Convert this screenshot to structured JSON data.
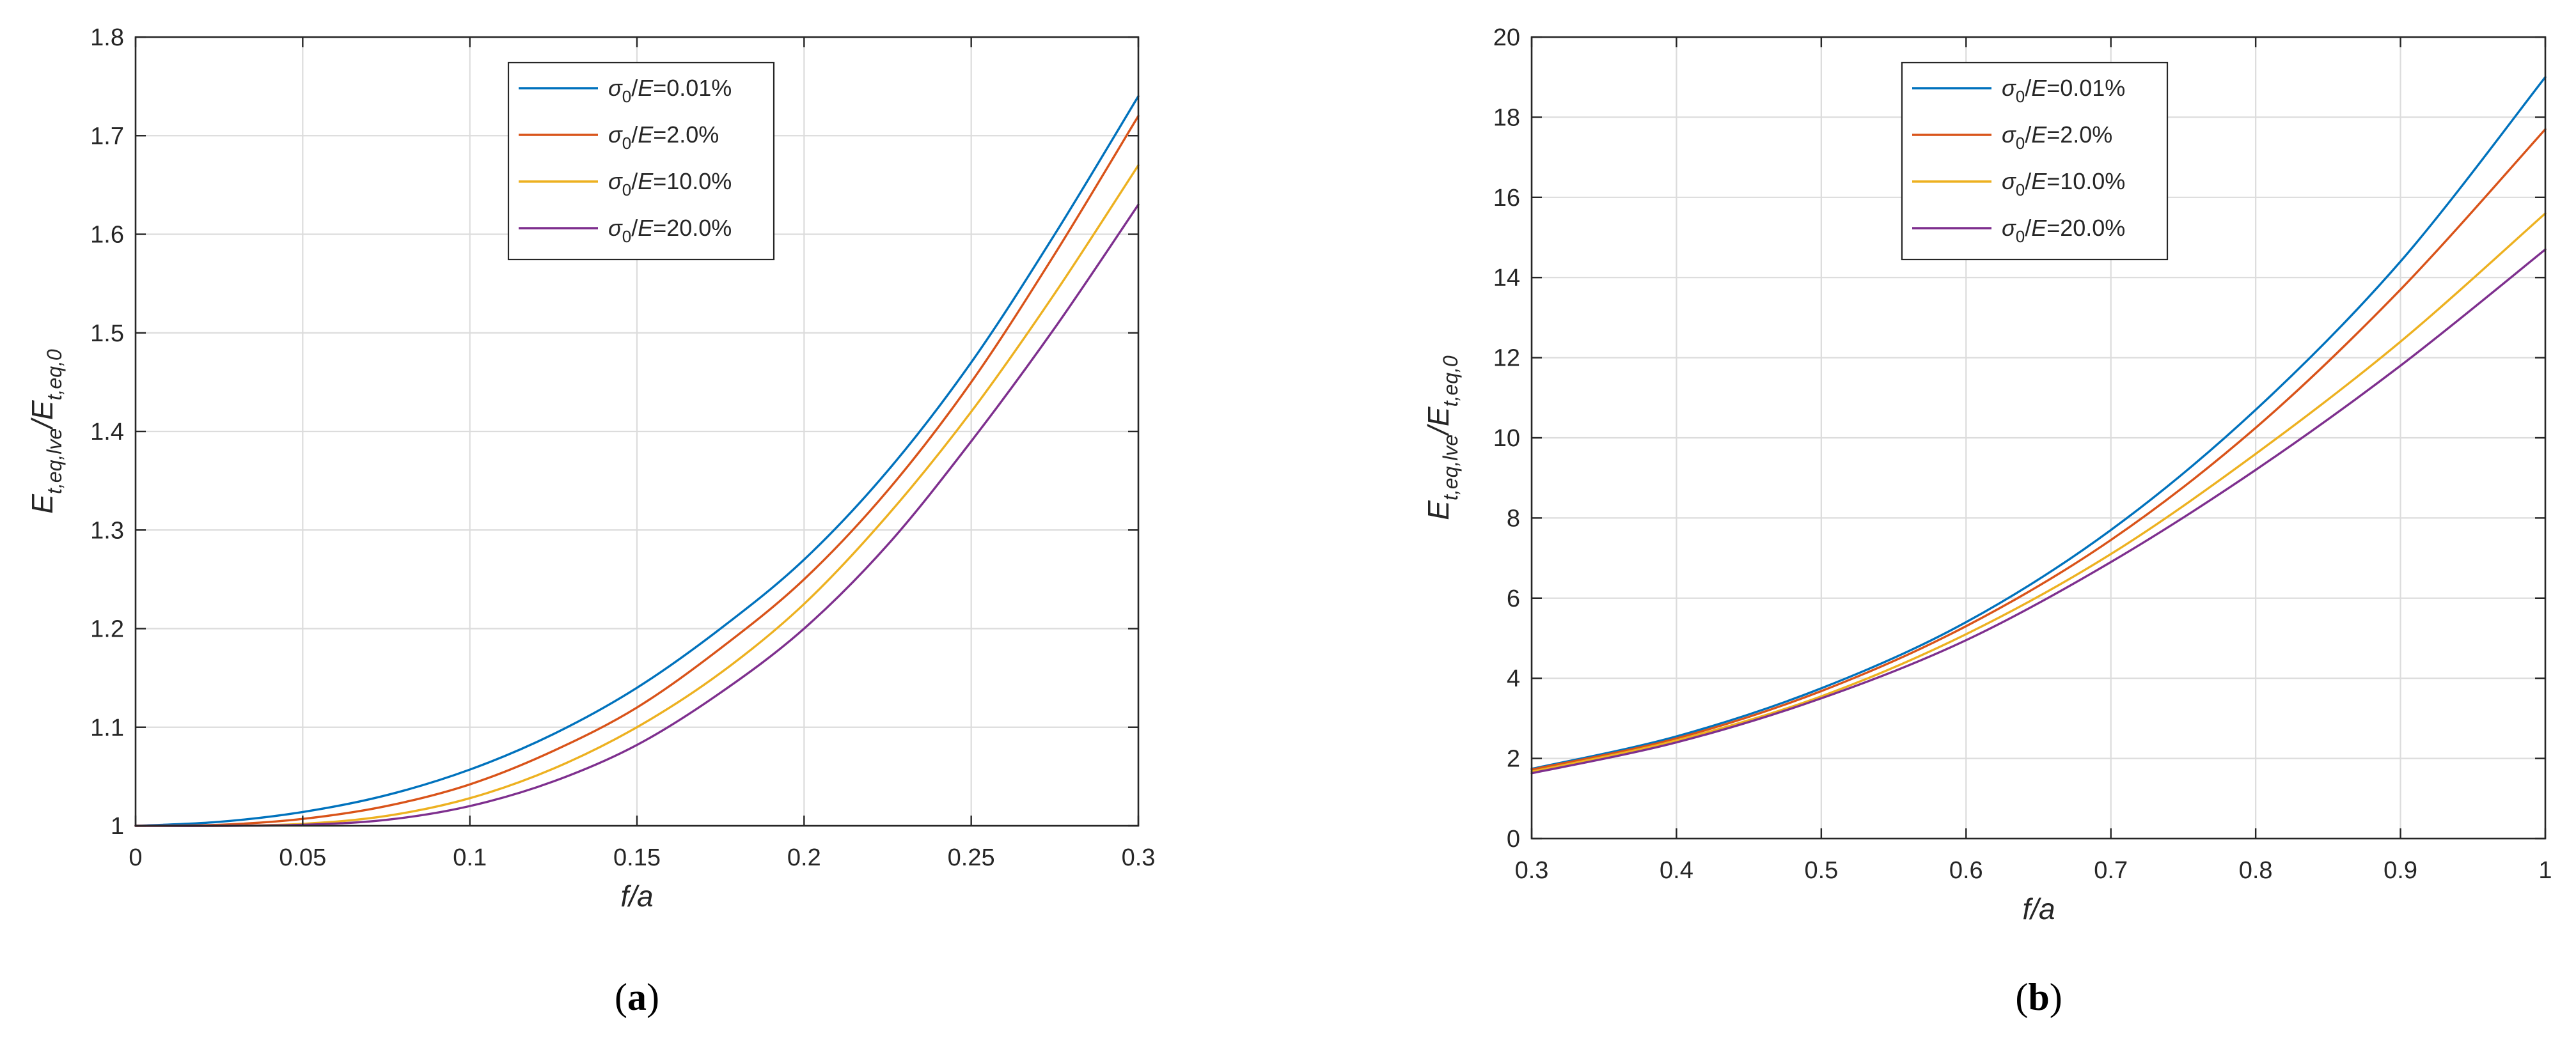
{
  "chart_data": [
    {
      "type": "line",
      "panel_label": "a",
      "xlabel": "f/a",
      "ylabel": "E_t,eq,lve/E_t,eq,0",
      "xlim": [
        0,
        0.3
      ],
      "ylim": [
        1,
        1.8
      ],
      "xticks": [
        0,
        0.05,
        0.1,
        0.15,
        0.2,
        0.25,
        0.3
      ],
      "xtick_labels": [
        "0",
        "0.05",
        "0.1",
        "0.15",
        "0.2",
        "0.25",
        "0.3"
      ],
      "yticks": [
        1,
        1.1,
        1.2,
        1.3,
        1.4,
        1.5,
        1.6,
        1.7,
        1.8
      ],
      "ytick_labels": [
        "1",
        "1.1",
        "1.2",
        "1.3",
        "1.4",
        "1.5",
        "1.6",
        "1.7",
        "1.8"
      ],
      "grid": true,
      "legend_position": "top-center",
      "x": [
        0,
        0.025,
        0.05,
        0.075,
        0.1,
        0.125,
        0.15,
        0.175,
        0.2,
        0.225,
        0.25,
        0.275,
        0.3
      ],
      "series": [
        {
          "name": "σ0/E=0.01%",
          "color": "#0072BD",
          "values": [
            1.0,
            1.004,
            1.014,
            1.031,
            1.057,
            1.093,
            1.14,
            1.2,
            1.27,
            1.36,
            1.47,
            1.6,
            1.74
          ]
        },
        {
          "name": "σ0/E=2.0%",
          "color": "#D95319",
          "values": [
            1.0,
            1.001,
            1.007,
            1.02,
            1.042,
            1.076,
            1.12,
            1.18,
            1.25,
            1.34,
            1.45,
            1.58,
            1.72
          ]
        },
        {
          "name": "σ0/E=10.0%",
          "color": "#EDB120",
          "values": [
            1.0,
            1.0,
            1.002,
            1.01,
            1.028,
            1.058,
            1.1,
            1.155,
            1.225,
            1.315,
            1.42,
            1.54,
            1.67
          ]
        },
        {
          "name": "σ0/E=20.0%",
          "color": "#7E2F8E",
          "values": [
            1.0,
            1.0,
            1.001,
            1.006,
            1.02,
            1.045,
            1.082,
            1.135,
            1.2,
            1.285,
            1.39,
            1.505,
            1.63
          ]
        }
      ]
    },
    {
      "type": "line",
      "panel_label": "b",
      "xlabel": "f/a",
      "ylabel": "E_t,eq,lve/E_t,eq,0",
      "xlim": [
        0.3,
        1
      ],
      "ylim": [
        0,
        20
      ],
      "xticks": [
        0.3,
        0.4,
        0.5,
        0.6,
        0.7,
        0.8,
        0.9,
        1
      ],
      "xtick_labels": [
        "0.3",
        "0.4",
        "0.5",
        "0.6",
        "0.7",
        "0.8",
        "0.9",
        "1"
      ],
      "yticks": [
        0,
        2,
        4,
        6,
        8,
        10,
        12,
        14,
        16,
        18,
        20
      ],
      "ytick_labels": [
        "0",
        "2",
        "4",
        "6",
        "8",
        "10",
        "12",
        "14",
        "16",
        "18",
        "20"
      ],
      "grid": true,
      "legend_position": "top-center",
      "x": [
        0.3,
        0.4,
        0.5,
        0.6,
        0.7,
        0.8,
        0.9,
        1.0
      ],
      "series": [
        {
          "name": "σ0/E=0.01%",
          "color": "#0072BD",
          "values": [
            1.74,
            2.55,
            3.75,
            5.4,
            7.7,
            10.7,
            14.4,
            19.0
          ]
        },
        {
          "name": "σ0/E=2.0%",
          "color": "#D95319",
          "values": [
            1.72,
            2.5,
            3.68,
            5.3,
            7.45,
            10.25,
            13.7,
            17.7
          ]
        },
        {
          "name": "σ0/E=10.0%",
          "color": "#EDB120",
          "values": [
            1.67,
            2.45,
            3.55,
            5.1,
            7.1,
            9.6,
            12.4,
            15.6
          ]
        },
        {
          "name": "σ0/E=20.0%",
          "color": "#7E2F8E",
          "values": [
            1.63,
            2.4,
            3.5,
            4.95,
            6.9,
            9.2,
            11.8,
            14.7
          ]
        }
      ]
    }
  ]
}
